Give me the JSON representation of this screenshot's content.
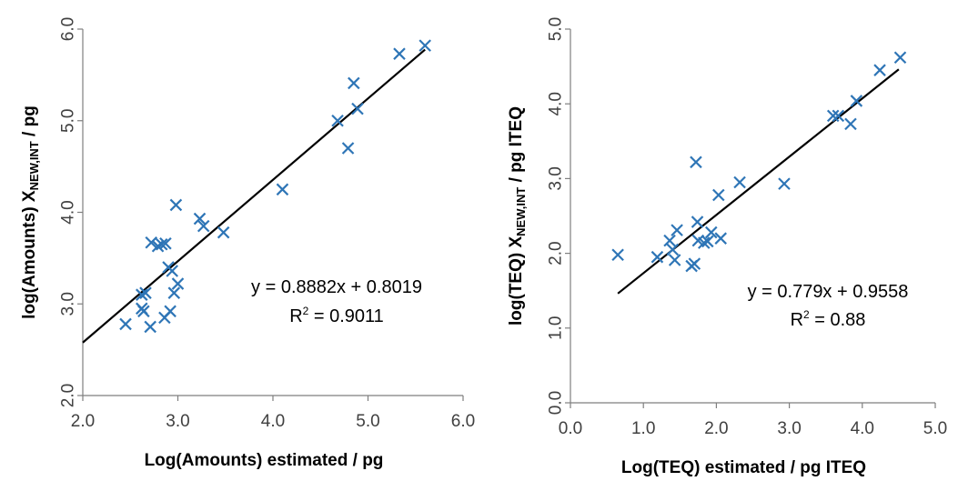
{
  "chart_data": [
    {
      "type": "scatter",
      "xlabel": "Log(Amounts) estimated / pg",
      "ylabel_main": "log(Amounts) X",
      "ylabel_sub": "NEW,INT",
      "ylabel_tail": " / pg",
      "xlim": [
        2.0,
        6.0
      ],
      "ylim": [
        2.0,
        6.0
      ],
      "xticks": [
        "2.0",
        "3.0",
        "4.0",
        "5.0",
        "6.0"
      ],
      "yticks": [
        "2.0",
        "3.0",
        "4.0",
        "5.0",
        "6.0"
      ],
      "marker_color": "#2e75b6",
      "line_color": "#000000",
      "trendline": {
        "slope": 0.8882,
        "intercept": 0.8019,
        "x_range": [
          2.0,
          5.6
        ]
      },
      "equation": "y = 0.8882x + 0.8019",
      "r2_prefix": "R",
      "r2_sup": "2",
      "r2_value": " = 0.9011",
      "points": [
        {
          "x": 2.45,
          "y": 2.78
        },
        {
          "x": 2.62,
          "y": 2.95
        },
        {
          "x": 2.62,
          "y": 3.1
        },
        {
          "x": 2.64,
          "y": 2.92
        },
        {
          "x": 2.66,
          "y": 3.12
        },
        {
          "x": 2.71,
          "y": 2.75
        },
        {
          "x": 2.72,
          "y": 3.67
        },
        {
          "x": 2.79,
          "y": 3.63
        },
        {
          "x": 2.83,
          "y": 3.65
        },
        {
          "x": 2.87,
          "y": 3.66
        },
        {
          "x": 2.86,
          "y": 2.85
        },
        {
          "x": 2.9,
          "y": 3.4
        },
        {
          "x": 2.92,
          "y": 2.92
        },
        {
          "x": 2.94,
          "y": 3.36
        },
        {
          "x": 2.96,
          "y": 3.12
        },
        {
          "x": 2.98,
          "y": 4.08
        },
        {
          "x": 3.0,
          "y": 3.22
        },
        {
          "x": 3.23,
          "y": 3.93
        },
        {
          "x": 3.27,
          "y": 3.85
        },
        {
          "x": 3.48,
          "y": 3.78
        },
        {
          "x": 4.1,
          "y": 4.25
        },
        {
          "x": 4.68,
          "y": 5.0
        },
        {
          "x": 4.79,
          "y": 4.7
        },
        {
          "x": 4.85,
          "y": 5.41
        },
        {
          "x": 4.89,
          "y": 5.13
        },
        {
          "x": 5.33,
          "y": 5.73
        },
        {
          "x": 5.6,
          "y": 5.82
        }
      ]
    },
    {
      "type": "scatter",
      "xlabel": "Log(TEQ) estimated / pg ITEQ",
      "ylabel_main": "log(TEQ) X",
      "ylabel_sub": "NEW,INT",
      "ylabel_tail": " / pg ITEQ",
      "xlim": [
        0.0,
        5.0
      ],
      "ylim": [
        0.0,
        5.0
      ],
      "xticks": [
        "0.0",
        "1.0",
        "2.0",
        "3.0",
        "4.0",
        "5.0"
      ],
      "yticks": [
        "0.0",
        "1.0",
        "2.0",
        "3.0",
        "4.0",
        "5.0"
      ],
      "marker_color": "#2e75b6",
      "line_color": "#000000",
      "trendline": {
        "slope": 0.779,
        "intercept": 0.9558,
        "x_range": [
          0.65,
          4.5
        ]
      },
      "equation": "y = 0.779x + 0.9558",
      "r2_prefix": "R",
      "r2_sup": "2",
      "r2_value": " = 0.88",
      "points": [
        {
          "x": 0.65,
          "y": 1.98
        },
        {
          "x": 1.19,
          "y": 1.95
        },
        {
          "x": 1.36,
          "y": 2.17
        },
        {
          "x": 1.4,
          "y": 2.05
        },
        {
          "x": 1.43,
          "y": 1.91
        },
        {
          "x": 1.46,
          "y": 2.31
        },
        {
          "x": 1.66,
          "y": 1.83
        },
        {
          "x": 1.7,
          "y": 1.86
        },
        {
          "x": 1.72,
          "y": 3.22
        },
        {
          "x": 1.74,
          "y": 2.42
        },
        {
          "x": 1.75,
          "y": 2.17
        },
        {
          "x": 1.83,
          "y": 2.14
        },
        {
          "x": 1.88,
          "y": 2.16
        },
        {
          "x": 1.93,
          "y": 2.28
        },
        {
          "x": 2.03,
          "y": 2.78
        },
        {
          "x": 2.06,
          "y": 2.2
        },
        {
          "x": 2.32,
          "y": 2.95
        },
        {
          "x": 2.93,
          "y": 2.93
        },
        {
          "x": 3.6,
          "y": 3.84
        },
        {
          "x": 3.67,
          "y": 3.84
        },
        {
          "x": 3.84,
          "y": 3.73
        },
        {
          "x": 3.92,
          "y": 4.04
        },
        {
          "x": 4.24,
          "y": 4.45
        },
        {
          "x": 4.52,
          "y": 4.62
        }
      ]
    }
  ]
}
